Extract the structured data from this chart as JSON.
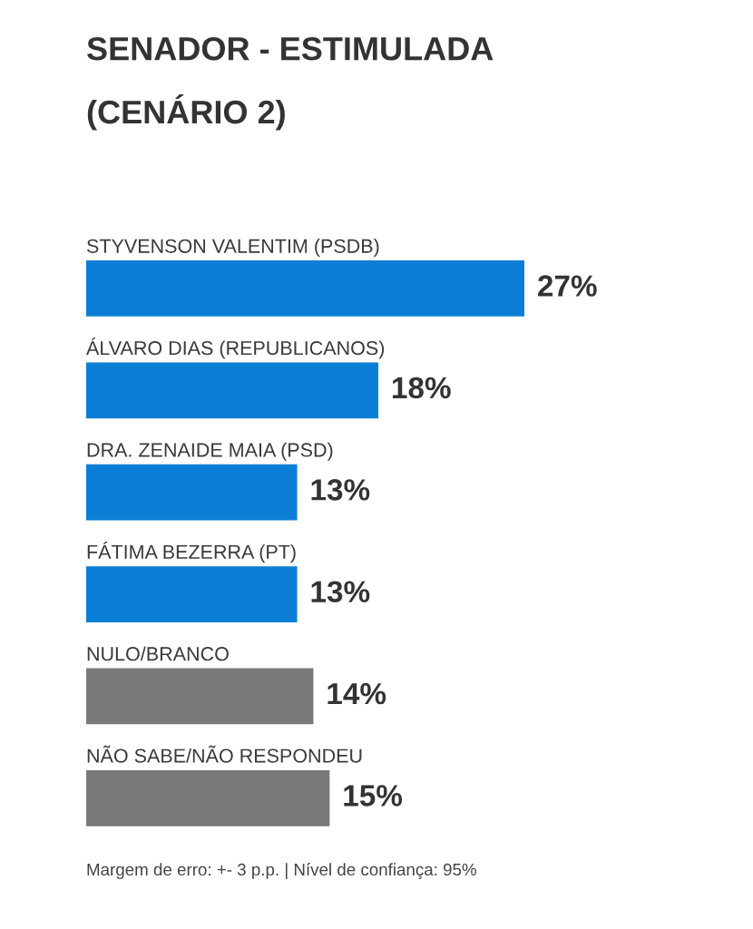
{
  "chart_data": {
    "type": "bar",
    "orientation": "horizontal",
    "title": "SENADOR - ESTIMULADA\n(CENÁRIO 2)",
    "categories": [
      "STYVENSON VALENTIM (PSDB)",
      "ÁLVARO DIAS (REPUBLICANOS)",
      "DRA. ZENAIDE MAIA (PSD)",
      "FÁTIMA BEZERRA (PT)",
      "NULO/BRANCO",
      "NÃO SABE/NÃO RESPONDEU"
    ],
    "values": [
      27,
      18,
      13,
      13,
      14,
      15
    ],
    "colors": [
      "#0a7fd5",
      "#0a7fd5",
      "#0a7fd5",
      "#0a7fd5",
      "#7a7a7a",
      "#7a7a7a"
    ],
    "value_labels": [
      "27%",
      "18%",
      "13%",
      "13%",
      "14%",
      "15%"
    ],
    "tick_labels": "y",
    "annotations": [
      "Margem de erro: +- 3 p.p. | Nível de confiança: 95%"
    ]
  }
}
